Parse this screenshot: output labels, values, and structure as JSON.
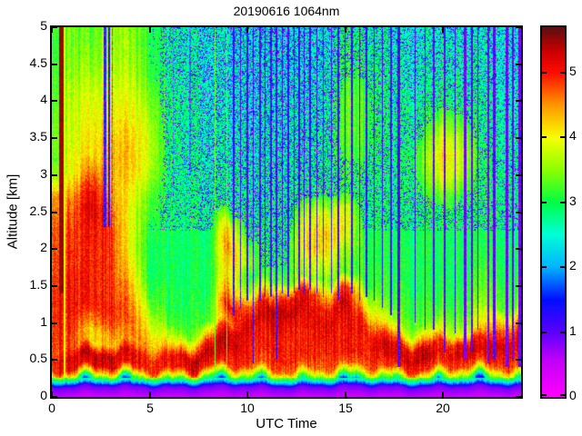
{
  "title": "20190616 1064nm",
  "axes": {
    "xlabel": "UTC Time",
    "ylabel": "Altitude [km]",
    "x_range": [
      0,
      24
    ],
    "y_range": [
      0,
      5
    ],
    "x_tick_values": [
      0,
      5,
      10,
      15,
      20
    ],
    "x_tick_labels": [
      "0",
      "5",
      "10",
      "15",
      "20"
    ],
    "y_tick_values": [
      0,
      0.5,
      1,
      1.5,
      2,
      2.5,
      3,
      3.5,
      4,
      4.5,
      5
    ],
    "y_tick_labels": [
      "0",
      "0.5",
      "1",
      "1.5",
      "2",
      "2.5",
      "3",
      "3.5",
      "4",
      "4.5",
      "5"
    ]
  },
  "colorbar": {
    "tick_values": [
      0,
      1,
      2,
      3,
      4,
      5
    ],
    "tick_labels": [
      "0",
      "1",
      "2",
      "3",
      "4",
      "5"
    ],
    "range": [
      0,
      5.7
    ],
    "stops": [
      [
        0.0,
        "#ff00ff"
      ],
      [
        0.55,
        "#c400f8"
      ],
      [
        1.0,
        "#5a00ff"
      ],
      [
        1.5,
        "#0010ff"
      ],
      [
        2.0,
        "#00b4ff"
      ],
      [
        2.5,
        "#00ffd8"
      ],
      [
        3.0,
        "#00ff46"
      ],
      [
        3.5,
        "#8cff00"
      ],
      [
        4.0,
        "#f8ff00"
      ],
      [
        4.5,
        "#ff9800"
      ],
      [
        5.0,
        "#ff0d00"
      ],
      [
        5.35,
        "#c80000"
      ],
      [
        5.7,
        "#5c1010"
      ]
    ]
  },
  "chart_data": {
    "type": "heatmap",
    "title": "20190616 1064nm",
    "xlabel": "UTC Time",
    "ylabel": "Altitude [km]",
    "xlim": [
      0,
      24
    ],
    "ylim": [
      0,
      5
    ],
    "value_range": [
      0,
      5.7
    ],
    "x_hours": [
      0,
      1,
      2,
      3,
      4,
      5,
      6,
      7,
      8,
      9,
      10,
      11,
      12,
      13,
      14,
      15,
      16,
      17,
      18,
      19,
      20,
      21,
      22,
      23,
      24
    ],
    "alt_km": [
      5.0,
      4.5,
      4.0,
      3.5,
      3.25,
      3.0,
      2.75,
      2.5,
      2.25,
      2.0,
      1.8,
      1.6,
      1.4,
      1.2,
      1.0,
      0.85,
      0.7,
      0.55,
      0.4,
      0.3,
      0.24,
      0.18,
      0.13,
      0.0
    ],
    "values": [
      [
        3.3,
        3.4,
        3.3,
        3.6,
        3.5,
        3.1,
        2.8,
        2.7,
        2.6,
        2.6,
        2.6,
        2.6,
        2.6,
        2.6,
        2.6,
        2.9,
        2.9,
        2.7,
        2.6,
        2.6,
        2.7,
        2.7,
        2.6,
        2.6,
        2.6
      ],
      [
        3.3,
        3.5,
        3.5,
        3.7,
        3.6,
        3.2,
        2.8,
        2.7,
        2.6,
        2.6,
        2.6,
        2.6,
        2.6,
        2.6,
        2.7,
        3.1,
        3.1,
        2.8,
        2.7,
        2.7,
        2.8,
        2.8,
        2.7,
        2.6,
        2.6
      ],
      [
        3.4,
        3.7,
        3.9,
        4.0,
        3.9,
        3.5,
        2.9,
        2.8,
        2.7,
        2.6,
        2.6,
        2.6,
        2.7,
        2.7,
        2.8,
        3.3,
        3.3,
        2.9,
        2.8,
        2.8,
        3.0,
        2.9,
        2.8,
        2.7,
        2.7
      ],
      [
        3.5,
        3.8,
        4.1,
        4.3,
        4.2,
        3.8,
        2.9,
        2.8,
        2.7,
        2.7,
        2.7,
        2.7,
        2.7,
        2.8,
        2.9,
        3.3,
        3.3,
        2.9,
        2.8,
        3.2,
        3.9,
        3.6,
        2.9,
        2.8,
        2.8
      ],
      [
        3.4,
        3.9,
        4.2,
        4.4,
        4.3,
        3.8,
        2.9,
        2.8,
        2.8,
        2.7,
        2.7,
        2.7,
        2.8,
        2.8,
        2.9,
        3.2,
        3.2,
        2.9,
        2.9,
        3.4,
        4.2,
        3.8,
        3.0,
        2.8,
        2.8
      ],
      [
        3.6,
        4.0,
        4.7,
        4.4,
        4.2,
        3.7,
        2.9,
        2.8,
        2.8,
        2.8,
        2.8,
        2.8,
        2.8,
        2.9,
        3.0,
        3.1,
        3.1,
        2.9,
        2.9,
        3.3,
        4.0,
        3.6,
        3.0,
        2.9,
        2.9
      ],
      [
        4.6,
        4.4,
        5.2,
        4.5,
        4.0,
        3.4,
        2.9,
        2.8,
        2.8,
        2.8,
        2.8,
        2.8,
        2.9,
        3.0,
        3.1,
        3.1,
        3.0,
        2.9,
        2.9,
        3.1,
        3.5,
        3.2,
        3.0,
        2.9,
        2.9
      ],
      [
        4.8,
        4.7,
        5.3,
        4.8,
        3.9,
        3.2,
        2.9,
        2.9,
        2.9,
        3.2,
        2.9,
        2.9,
        2.9,
        3.6,
        4.0,
        3.8,
        3.0,
        2.9,
        2.9,
        3.0,
        3.1,
        3.0,
        3.0,
        2.9,
        2.9
      ],
      [
        4.9,
        4.8,
        5.1,
        4.9,
        3.9,
        3.1,
        2.9,
        2.9,
        2.9,
        4.2,
        3.0,
        2.9,
        3.0,
        4.0,
        4.3,
        4.0,
        3.1,
        3.0,
        2.9,
        3.0,
        3.0,
        3.0,
        3.0,
        2.9,
        2.9
      ],
      [
        4.9,
        4.9,
        5.0,
        4.9,
        3.9,
        3.0,
        2.9,
        2.9,
        2.9,
        4.6,
        3.4,
        3.0,
        3.0,
        4.2,
        4.2,
        3.7,
        3.2,
        3.0,
        3.0,
        3.0,
        3.0,
        3.0,
        3.0,
        3.0,
        3.0
      ],
      [
        4.9,
        4.9,
        5.0,
        4.9,
        4.0,
        3.0,
        2.9,
        2.9,
        3.0,
        4.3,
        3.6,
        3.0,
        3.1,
        3.8,
        3.8,
        3.4,
        3.2,
        3.0,
        3.0,
        3.0,
        3.0,
        3.0,
        3.1,
        3.0,
        3.0
      ],
      [
        5.0,
        5.0,
        5.0,
        4.9,
        4.2,
        3.1,
        2.9,
        2.9,
        3.0,
        4.2,
        3.1,
        3.2,
        3.4,
        3.6,
        3.5,
        3.3,
        3.2,
        3.1,
        3.0,
        3.0,
        3.0,
        3.0,
        3.2,
        3.1,
        3.1
      ],
      [
        5.0,
        5.0,
        5.0,
        4.9,
        4.4,
        3.3,
        3.0,
        3.0,
        3.0,
        4.6,
        3.5,
        4.2,
        5.0,
        5.2,
        4.3,
        5.0,
        3.6,
        3.2,
        3.1,
        3.1,
        3.1,
        3.1,
        3.3,
        3.2,
        3.2
      ],
      [
        5.0,
        5.0,
        5.0,
        5.0,
        4.6,
        3.6,
        3.0,
        3.0,
        3.1,
        5.2,
        4.6,
        5.3,
        5.4,
        5.2,
        5.0,
        5.3,
        4.3,
        3.4,
        3.2,
        3.2,
        3.2,
        3.2,
        3.5,
        3.4,
        3.4
      ],
      [
        5.0,
        4.9,
        4.6,
        4.8,
        4.7,
        4.0,
        3.2,
        3.1,
        3.3,
        4.6,
        5.2,
        5.2,
        5.1,
        5.1,
        5.2,
        5.1,
        5.0,
        4.0,
        3.4,
        3.4,
        3.5,
        3.4,
        3.8,
        4.4,
        4.4
      ],
      [
        5.0,
        4.8,
        4.2,
        4.5,
        4.6,
        4.3,
        3.6,
        3.3,
        4.2,
        5.3,
        5.1,
        5.0,
        5.0,
        5.0,
        5.1,
        5.0,
        5.1,
        4.9,
        3.9,
        4.2,
        4.0,
        3.8,
        4.2,
        5.0,
        5.0
      ],
      [
        4.9,
        4.8,
        4.2,
        4.3,
        4.5,
        4.5,
        4.2,
        4.2,
        5.2,
        5.4,
        5.0,
        5.0,
        5.0,
        5.0,
        5.0,
        5.0,
        5.0,
        5.3,
        5.0,
        5.3,
        4.9,
        5.2,
        5.0,
        5.3,
        5.2
      ],
      [
        5.0,
        5.2,
        5.4,
        5.3,
        5.2,
        5.0,
        5.0,
        5.3,
        5.4,
        5.1,
        5.0,
        4.9,
        5.0,
        5.0,
        4.9,
        5.0,
        5.0,
        5.1,
        5.3,
        5.4,
        5.1,
        5.3,
        5.2,
        5.1,
        5.0
      ],
      [
        5.0,
        5.1,
        5.2,
        5.2,
        5.1,
        5.0,
        5.0,
        5.1,
        5.0,
        4.9,
        4.8,
        4.7,
        4.7,
        4.7,
        4.7,
        4.7,
        4.7,
        4.8,
        4.9,
        4.9,
        4.8,
        4.8,
        4.8,
        4.7,
        4.7
      ],
      [
        3.9,
        4.0,
        4.1,
        4.2,
        4.1,
        4.0,
        4.0,
        4.0,
        3.9,
        3.8,
        3.8,
        3.8,
        3.8,
        3.8,
        3.8,
        3.8,
        3.8,
        3.8,
        3.9,
        3.9,
        3.8,
        3.8,
        3.8,
        3.8,
        3.8
      ],
      [
        3.0,
        3.0,
        3.1,
        3.1,
        3.1,
        3.0,
        3.0,
        3.0,
        3.0,
        3.0,
        3.0,
        3.0,
        3.0,
        3.0,
        3.0,
        3.0,
        3.0,
        3.0,
        3.0,
        3.0,
        3.0,
        3.0,
        3.0,
        3.0,
        3.0
      ],
      [
        1.8,
        1.8,
        1.9,
        1.9,
        1.9,
        1.8,
        1.8,
        1.8,
        1.8,
        1.8,
        1.8,
        1.8,
        1.8,
        1.8,
        1.8,
        1.8,
        1.8,
        1.8,
        1.8,
        1.8,
        1.8,
        1.8,
        1.8,
        1.8,
        1.8
      ],
      [
        0.9,
        0.9,
        0.9,
        0.9,
        0.9,
        0.9,
        0.9,
        0.9,
        0.9,
        0.9,
        0.9,
        0.9,
        0.9,
        0.9,
        0.9,
        0.9,
        0.9,
        0.9,
        0.9,
        0.9,
        0.9,
        0.9,
        0.9,
        0.9,
        0.9
      ],
      [
        0.5,
        0.5,
        0.5,
        0.5,
        0.5,
        0.5,
        0.5,
        0.5,
        0.5,
        0.5,
        0.5,
        0.5,
        0.5,
        0.5,
        0.5,
        0.5,
        0.5,
        0.5,
        0.5,
        0.5,
        0.5,
        0.5,
        0.5,
        0.5,
        0.5
      ]
    ],
    "attenuated_columns": [
      {
        "t": 0.45,
        "w": 0.22,
        "b": 1.4,
        "e": 5,
        "v": 5.5,
        "s": 0
      },
      {
        "t": 0.63,
        "w": 0.06,
        "b": 0.25,
        "e": 5,
        "v": 3.9,
        "s": 0
      },
      {
        "t": 2.7,
        "w": 0.1,
        "b": 2.3,
        "e": 5,
        "v": 1.5,
        "s": 1
      },
      {
        "t": 2.92,
        "w": 0.1,
        "b": 2.3,
        "e": 5,
        "v": 1.4,
        "s": 1
      },
      {
        "t": 3.08,
        "w": 0.05,
        "b": 2.3,
        "e": 5,
        "v": 2.1,
        "s": 1
      },
      {
        "t": 6.2,
        "w": 0.06,
        "b": 2.6,
        "e": 5,
        "v": 2.2,
        "s": 1
      },
      {
        "t": 7.05,
        "w": 0.08,
        "b": 3.0,
        "e": 5,
        "v": 2.0,
        "s": 1
      },
      {
        "t": 8.35,
        "w": 0.06,
        "b": 0.3,
        "e": 5,
        "v": 3.4,
        "s": 0
      },
      {
        "t": 8.95,
        "w": 0.07,
        "b": 0.3,
        "e": 5,
        "v": 3.3,
        "s": 0
      },
      {
        "t": 9.3,
        "w": 0.07,
        "b": 1.1,
        "e": 5,
        "v": 1.4,
        "s": 1
      },
      {
        "t": 9.65,
        "w": 0.07,
        "b": 1.2,
        "e": 5,
        "v": 1.3,
        "s": 1
      },
      {
        "t": 10.0,
        "w": 0.07,
        "b": 1.3,
        "e": 5,
        "v": 1.4,
        "s": 1
      },
      {
        "t": 10.3,
        "w": 0.08,
        "b": 0.45,
        "e": 5,
        "v": 1.3,
        "s": 1
      },
      {
        "t": 10.65,
        "w": 0.07,
        "b": 1.3,
        "e": 5,
        "v": 1.4,
        "s": 1
      },
      {
        "t": 10.9,
        "w": 0.06,
        "b": 1.35,
        "e": 5,
        "v": 1.3,
        "s": 1
      },
      {
        "t": 11.2,
        "w": 0.07,
        "b": 1.35,
        "e": 5,
        "v": 1.4,
        "s": 1
      },
      {
        "t": 11.5,
        "w": 0.09,
        "b": 0.5,
        "e": 5,
        "v": 1.3,
        "s": 1
      },
      {
        "t": 11.8,
        "w": 0.06,
        "b": 1.4,
        "e": 5,
        "v": 1.4,
        "s": 1
      },
      {
        "t": 12.1,
        "w": 0.07,
        "b": 1.35,
        "e": 5,
        "v": 1.3,
        "s": 1
      },
      {
        "t": 12.38,
        "w": 0.06,
        "b": 1.4,
        "e": 5,
        "v": 1.4,
        "s": 1
      },
      {
        "t": 12.65,
        "w": 0.07,
        "b": 1.45,
        "e": 5,
        "v": 1.3,
        "s": 1
      },
      {
        "t": 12.9,
        "w": 0.06,
        "b": 1.4,
        "e": 5,
        "v": 1.4,
        "s": 1
      },
      {
        "t": 13.2,
        "w": 0.07,
        "b": 1.45,
        "e": 5,
        "v": 1.3,
        "s": 1
      },
      {
        "t": 13.55,
        "w": 0.07,
        "b": 1.4,
        "e": 5,
        "v": 1.4,
        "s": 1
      },
      {
        "t": 13.9,
        "w": 0.06,
        "b": 1.35,
        "e": 5,
        "v": 1.3,
        "s": 1
      },
      {
        "t": 14.3,
        "w": 0.07,
        "b": 1.4,
        "e": 5,
        "v": 1.4,
        "s": 1
      },
      {
        "t": 14.65,
        "w": 0.07,
        "b": 1.3,
        "e": 5,
        "v": 1.3,
        "s": 1
      },
      {
        "t": 15.0,
        "w": 0.06,
        "b": 1.35,
        "e": 5,
        "v": 1.4,
        "s": 1
      },
      {
        "t": 15.35,
        "w": 0.07,
        "b": 1.4,
        "e": 5,
        "v": 1.3,
        "s": 1
      },
      {
        "t": 15.75,
        "w": 0.07,
        "b": 1.3,
        "e": 5,
        "v": 1.4,
        "s": 1
      },
      {
        "t": 16.1,
        "w": 0.06,
        "b": 1.35,
        "e": 5,
        "v": 1.3,
        "s": 1
      },
      {
        "t": 16.5,
        "w": 0.07,
        "b": 1.3,
        "e": 5,
        "v": 1.4,
        "s": 1
      },
      {
        "t": 16.9,
        "w": 0.06,
        "b": 1.2,
        "e": 5,
        "v": 1.3,
        "s": 1
      },
      {
        "t": 17.35,
        "w": 0.07,
        "b": 1.1,
        "e": 5,
        "v": 1.4,
        "s": 1
      },
      {
        "t": 17.75,
        "w": 0.12,
        "b": 0.4,
        "e": 5,
        "v": 1.2,
        "s": 1
      },
      {
        "t": 18.6,
        "w": 0.07,
        "b": 1.0,
        "e": 5,
        "v": 1.3,
        "s": 1
      },
      {
        "t": 19.1,
        "w": 0.07,
        "b": 0.9,
        "e": 5,
        "v": 1.4,
        "s": 1
      },
      {
        "t": 19.55,
        "w": 0.1,
        "b": 0.9,
        "e": 5,
        "v": 1.0,
        "s": 1
      },
      {
        "t": 20.1,
        "w": 0.12,
        "b": 0.6,
        "e": 5,
        "v": 1.1,
        "s": 1
      },
      {
        "t": 20.65,
        "w": 0.08,
        "b": 0.85,
        "e": 5,
        "v": 1.3,
        "s": 1
      },
      {
        "t": 21.15,
        "w": 0.14,
        "b": 0.5,
        "e": 5,
        "v": 0.95,
        "s": 1
      },
      {
        "t": 21.5,
        "w": 0.1,
        "b": 0.6,
        "e": 5,
        "v": 1.1,
        "s": 1
      },
      {
        "t": 21.8,
        "w": 0.07,
        "b": 0.9,
        "e": 5,
        "v": 1.3,
        "s": 1
      },
      {
        "t": 22.35,
        "w": 0.12,
        "b": 0.45,
        "e": 5,
        "v": 0.95,
        "s": 1
      },
      {
        "t": 22.65,
        "w": 0.1,
        "b": 0.5,
        "e": 5,
        "v": 1.1,
        "s": 1
      },
      {
        "t": 23.3,
        "w": 0.12,
        "b": 0.4,
        "e": 5,
        "v": 0.95,
        "s": 1
      },
      {
        "t": 23.6,
        "w": 0.1,
        "b": 0.5,
        "e": 5,
        "v": 1.1,
        "s": 1
      },
      {
        "t": 23.95,
        "w": 0.14,
        "b": 0.4,
        "e": 5,
        "v": 0.9,
        "s": 1
      }
    ],
    "noise": {
      "pixel": 0.5,
      "column": 0.22,
      "speckle_upper_prob": 0.33,
      "speckle_side_prob": 0.22,
      "speckle_early_prob": 0.04,
      "speckle_values": [
        0.75,
        2.2
      ]
    }
  }
}
